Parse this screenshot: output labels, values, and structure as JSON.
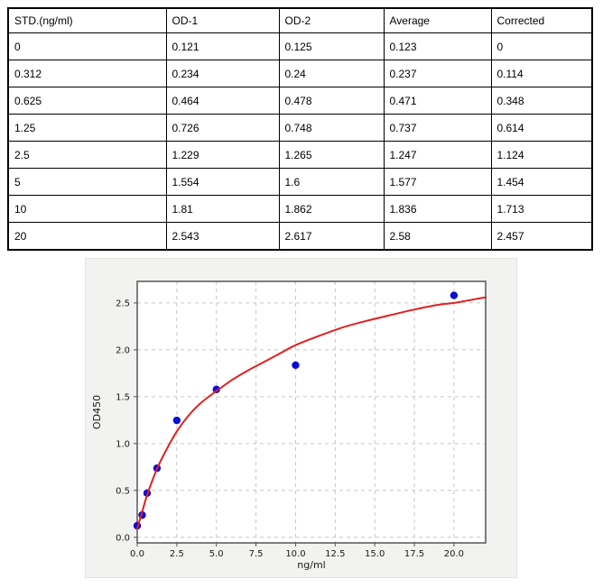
{
  "table": {
    "columns": [
      "STD.(ng/ml)",
      "OD-1",
      "OD-2",
      "Average",
      "Corrected"
    ],
    "rows": [
      [
        "0",
        "0.121",
        "0.125",
        "0.123",
        "0"
      ],
      [
        "0.312",
        "0.234",
        "0.24",
        "0.237",
        "0.114"
      ],
      [
        "0.625",
        "0.464",
        "0.478",
        "0.471",
        "0.348"
      ],
      [
        "1.25",
        "0.726",
        "0.748",
        "0.737",
        "0.614"
      ],
      [
        "2.5",
        "1.229",
        "1.265",
        "1.247",
        "1.124"
      ],
      [
        "5",
        "1.554",
        "1.6",
        "1.577",
        "1.454"
      ],
      [
        "10",
        "1.81",
        "1.862",
        "1.836",
        "1.713"
      ],
      [
        "20",
        "2.543",
        "2.617",
        "2.58",
        "2.457"
      ]
    ]
  },
  "chart_data": {
    "type": "scatter",
    "title": "",
    "xlabel": "ng/ml",
    "ylabel": "OD450",
    "xlim": [
      0,
      22
    ],
    "ylim": [
      -0.06,
      2.73
    ],
    "xticks": [
      0,
      2.5,
      5,
      7.5,
      10,
      12.5,
      15,
      17.5,
      20
    ],
    "xtick_labels": [
      "0.0",
      "2.5",
      "5.0",
      "7.5",
      "10.0",
      "12.5",
      "15.0",
      "17.5",
      "20.0"
    ],
    "yticks": [
      0,
      0.5,
      1,
      1.5,
      2,
      2.5
    ],
    "ytick_labels": [
      "0.0",
      "0.5",
      "1.0",
      "1.5",
      "2.0",
      "2.5"
    ],
    "grid": true,
    "grid_style": "dashed",
    "legend": "none",
    "series": [
      {
        "name": "standard-points",
        "type": "scatter",
        "color": "#0b0bd4",
        "x": [
          0,
          0.312,
          0.625,
          1.25,
          2.5,
          5,
          10,
          20
        ],
        "y": [
          0.123,
          0.237,
          0.471,
          0.737,
          1.247,
          1.577,
          1.836,
          2.58
        ]
      },
      {
        "name": "fit-curve",
        "type": "line",
        "color": "#e02020",
        "points": [
          [
            0,
            0.09
          ],
          [
            0.15,
            0.18
          ],
          [
            0.312,
            0.27
          ],
          [
            0.625,
            0.45
          ],
          [
            1.25,
            0.73
          ],
          [
            1.8,
            0.92
          ],
          [
            2.5,
            1.13
          ],
          [
            3.2,
            1.29
          ],
          [
            4,
            1.43
          ],
          [
            5,
            1.56
          ],
          [
            6,
            1.68
          ],
          [
            7,
            1.78
          ],
          [
            8,
            1.87
          ],
          [
            9,
            1.96
          ],
          [
            10,
            2.05
          ],
          [
            11.5,
            2.15
          ],
          [
            13,
            2.24
          ],
          [
            14.5,
            2.31
          ],
          [
            16,
            2.37
          ],
          [
            17.5,
            2.43
          ],
          [
            19,
            2.48
          ],
          [
            20,
            2.5
          ],
          [
            21,
            2.53
          ],
          [
            22,
            2.56
          ]
        ]
      }
    ],
    "colors": {
      "figure_bg": "#f2f2f0",
      "plot_bg": "#ffffff",
      "grid": "#c6c6c6",
      "spine": "#555555",
      "tick_text": "#1a1a1a"
    }
  }
}
